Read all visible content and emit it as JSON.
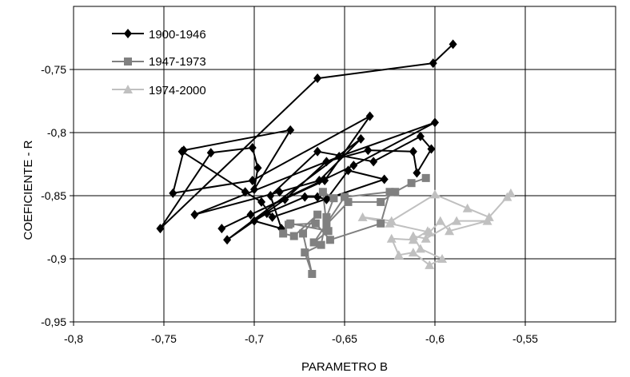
{
  "chart_data": {
    "type": "line",
    "title": "",
    "xlabel": "PARAMETRO B",
    "ylabel": "COEFICIENTE - R",
    "xlim": [
      -0.8,
      -0.5
    ],
    "ylim": [
      -0.95,
      -0.7
    ],
    "xticks": [
      -0.8,
      -0.75,
      -0.7,
      -0.65,
      -0.6,
      -0.55
    ],
    "yticks": [
      -0.75,
      -0.8,
      -0.85,
      -0.9,
      -0.95
    ],
    "xtick_labels": [
      "-0,8",
      "-0,75",
      "-0,7",
      "-0,65",
      "-0,6",
      "-0,55"
    ],
    "ytick_labels": [
      "-0,75",
      "-0,8",
      "-0,85",
      "-0,9",
      "-0,95"
    ],
    "grid": true,
    "legend_position": "top-left",
    "series": [
      {
        "name": "1900-1946",
        "color": "#000000",
        "marker": "diamond",
        "points": [
          [
            -0.59,
            -0.73
          ],
          [
            -0.601,
            -0.745
          ],
          [
            -0.665,
            -0.757
          ],
          [
            -0.752,
            -0.876
          ],
          [
            -0.724,
            -0.816
          ],
          [
            -0.701,
            -0.812
          ],
          [
            -0.698,
            -0.828
          ],
          [
            -0.7,
            -0.845
          ],
          [
            -0.68,
            -0.798
          ],
          [
            -0.739,
            -0.814
          ],
          [
            -0.745,
            -0.848
          ],
          [
            -0.701,
            -0.838
          ],
          [
            -0.636,
            -0.787
          ],
          [
            -0.661,
            -0.838
          ],
          [
            -0.702,
            -0.865
          ],
          [
            -0.718,
            -0.876
          ],
          [
            -0.645,
            -0.826
          ],
          [
            -0.6,
            -0.792
          ],
          [
            -0.653,
            -0.819
          ],
          [
            -0.733,
            -0.865
          ],
          [
            -0.686,
            -0.847
          ],
          [
            -0.664,
            -0.838
          ],
          [
            -0.641,
            -0.805
          ],
          [
            -0.715,
            -0.885
          ],
          [
            -0.683,
            -0.853
          ],
          [
            -0.66,
            -0.823
          ],
          [
            -0.637,
            -0.814
          ],
          [
            -0.612,
            -0.815
          ],
          [
            -0.61,
            -0.832
          ],
          [
            -0.602,
            -0.813
          ],
          [
            -0.608,
            -0.803
          ],
          [
            -0.634,
            -0.823
          ],
          [
            -0.665,
            -0.815
          ],
          [
            -0.691,
            -0.85
          ],
          [
            -0.685,
            -0.876
          ],
          [
            -0.7,
            -0.87
          ],
          [
            -0.693,
            -0.864
          ],
          [
            -0.672,
            -0.851
          ],
          [
            -0.665,
            -0.851
          ],
          [
            -0.66,
            -0.853
          ],
          [
            -0.648,
            -0.83
          ],
          [
            -0.628,
            -0.837
          ],
          [
            -0.69,
            -0.867
          ],
          [
            -0.696,
            -0.855
          ],
          [
            -0.705,
            -0.847
          ],
          [
            -0.74,
            -0.815
          ]
        ]
      },
      {
        "name": "1947-1973",
        "color": "#808080",
        "marker": "square",
        "points": [
          [
            -0.605,
            -0.836
          ],
          [
            -0.613,
            -0.84
          ],
          [
            -0.622,
            -0.847
          ],
          [
            -0.63,
            -0.855
          ],
          [
            -0.648,
            -0.855
          ],
          [
            -0.66,
            -0.873
          ],
          [
            -0.662,
            -0.847
          ],
          [
            -0.656,
            -0.852
          ],
          [
            -0.66,
            -0.867
          ],
          [
            -0.663,
            -0.889
          ],
          [
            -0.672,
            -0.895
          ],
          [
            -0.668,
            -0.912
          ],
          [
            -0.673,
            -0.88
          ],
          [
            -0.665,
            -0.865
          ],
          [
            -0.678,
            -0.882
          ],
          [
            -0.684,
            -0.88
          ],
          [
            -0.681,
            -0.873
          ],
          [
            -0.666,
            -0.872
          ],
          [
            -0.658,
            -0.885
          ],
          [
            -0.63,
            -0.872
          ],
          [
            -0.625,
            -0.847
          ],
          [
            -0.65,
            -0.851
          ],
          [
            -0.667,
            -0.887
          ],
          [
            -0.659,
            -0.878
          ],
          [
            -0.68,
            -0.872
          ]
        ]
      },
      {
        "name": "1974-2000",
        "color": "#c0c0c0",
        "marker": "triangle",
        "points": [
          [
            -0.558,
            -0.848
          ],
          [
            -0.56,
            -0.851
          ],
          [
            -0.57,
            -0.867
          ],
          [
            -0.582,
            -0.86
          ],
          [
            -0.6,
            -0.849
          ],
          [
            -0.624,
            -0.87
          ],
          [
            -0.64,
            -0.867
          ],
          [
            -0.625,
            -0.872
          ],
          [
            -0.603,
            -0.879
          ],
          [
            -0.597,
            -0.87
          ],
          [
            -0.592,
            -0.878
          ],
          [
            -0.571,
            -0.87
          ],
          [
            -0.588,
            -0.87
          ],
          [
            -0.605,
            -0.884
          ],
          [
            -0.612,
            -0.882
          ],
          [
            -0.608,
            -0.892
          ],
          [
            -0.596,
            -0.9
          ],
          [
            -0.603,
            -0.905
          ],
          [
            -0.612,
            -0.895
          ],
          [
            -0.62,
            -0.897
          ],
          [
            -0.624,
            -0.884
          ],
          [
            -0.612,
            -0.885
          ],
          [
            -0.604,
            -0.878
          ]
        ]
      }
    ]
  }
}
